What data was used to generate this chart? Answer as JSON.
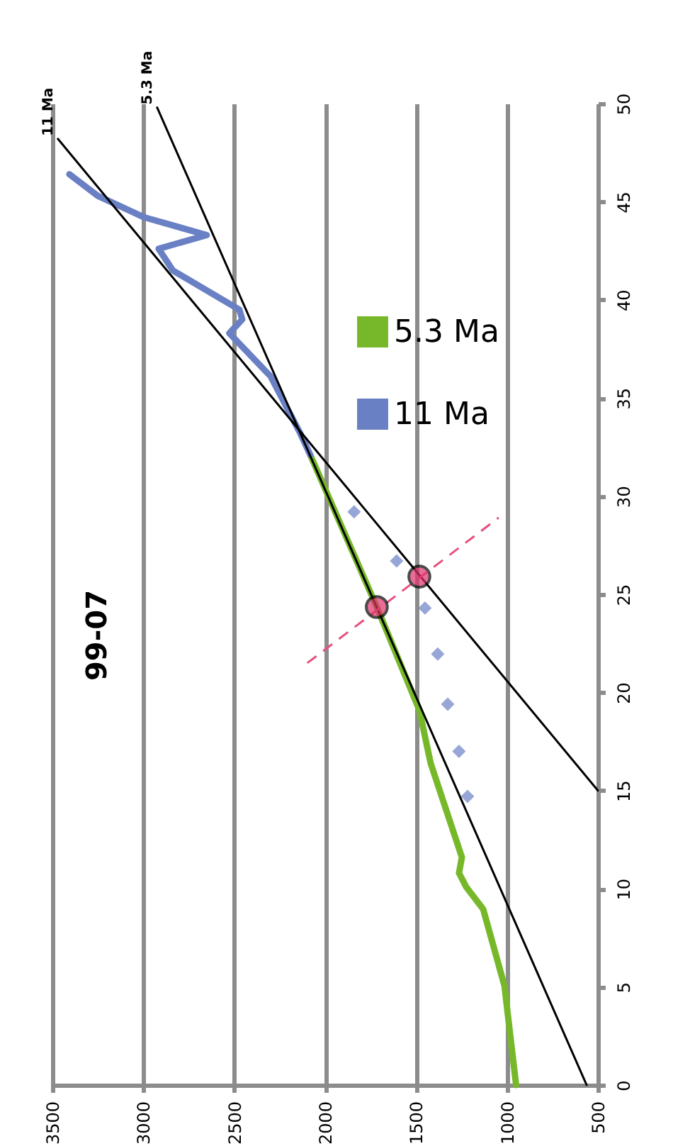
{
  "chart_data": {
    "type": "line",
    "xlim": [
      3500,
      500
    ],
    "xticks": [
      3500,
      3000,
      2500,
      2000,
      1500,
      1000,
      500
    ],
    "ylim": [
      0,
      50
    ],
    "yticks": [
      0,
      5,
      10,
      15,
      20,
      25,
      30,
      35,
      40,
      45,
      50
    ],
    "grid": "x",
    "legend": "top",
    "marker": "none",
    "annotations": [
      "99-07",
      {
        "text": "11 Ma",
        "x": 3470,
        "y": 48.2
      },
      {
        "text": "5.3 Ma",
        "x": 2924,
        "y": 49.8
      }
    ],
    "series": [
      {
        "name": "5.3 Ma",
        "color": "#77b82a",
        "x": [
          950,
          1014,
          1131,
          1225,
          1264,
          1248,
          1420,
          1482,
          1716,
          2082
        ],
        "values": [
          0,
          5.06,
          8.96,
          10.1,
          10.8,
          11.6,
          16.4,
          19.1,
          24.35,
          32.1
        ]
      },
      {
        "name": "11 Ma",
        "color": "#6a80c4",
        "x": [
          2082,
          2137,
          2300,
          2527,
          2456,
          2472,
          2838,
          2916,
          2651,
          2994,
          3251,
          3407
        ],
        "values": [
          32.1,
          33.2,
          36.1,
          38.3,
          39.0,
          39.5,
          41.5,
          42.6,
          43.3,
          44.2,
          45.3,
          46.4
        ]
      },
      {
        "type": "scatter",
        "marker": "diamond",
        "color": "#6a80c4",
        "x": [
          1217,
          1264,
          1326,
          1381,
          1451,
          1607,
          1841
        ],
        "values": [
          14.7,
          17.0,
          19.4,
          21.96,
          24.3,
          26.7,
          29.2
        ]
      },
      {
        "color": "#000000",
        "x": [
          562,
          2924
        ],
        "values": [
          0,
          49.8
        ]
      },
      {
        "color": "#000000",
        "x": [
          500,
          3470
        ],
        "values": [
          15,
          48.2
        ]
      },
      {
        "line_style": "dashed",
        "color": "#e8507a",
        "x": [
          2098,
          1046
        ],
        "values": [
          21.5,
          28.9
        ]
      },
      {
        "type": "scatter",
        "marker": "circle",
        "color": "#e0306a",
        "x": [
          1716,
          1482
        ],
        "values": [
          24.35,
          25.9
        ]
      }
    ]
  }
}
